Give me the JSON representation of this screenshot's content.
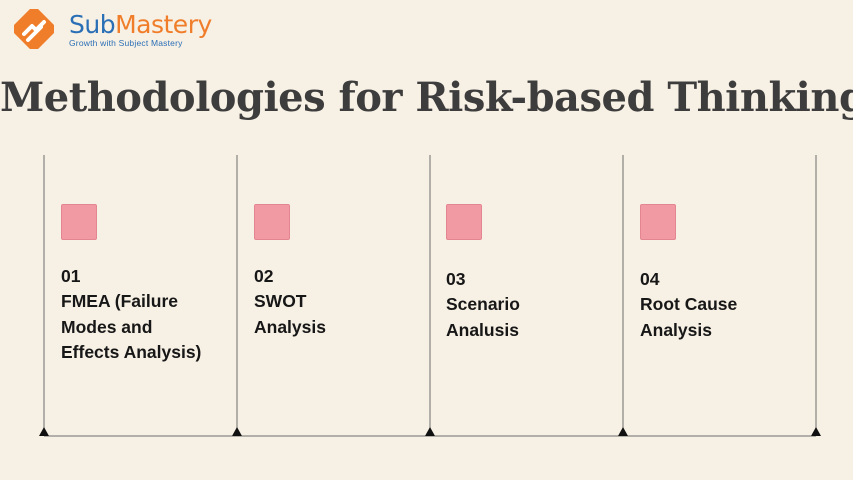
{
  "brand": {
    "name_part1": "Sub",
    "name_part2": "Mastery",
    "tagline": "Growth with Subject Mastery"
  },
  "title": "Methodologies for Risk-based Thinking",
  "colors": {
    "background": "#f7f0e4",
    "marker": "#f29aa3",
    "title": "#3e3d3d",
    "brand_blue": "#2a6fb6",
    "brand_orange": "#f07d2a"
  },
  "steps": [
    {
      "number": "01",
      "label": "FMEA (Failure Modes and Effects Analysis)"
    },
    {
      "number": "02",
      "label": "SWOT Analysis"
    },
    {
      "number": "03",
      "label": "Scenario Analusis"
    },
    {
      "number": "04",
      "label": "Root Cause Analysis"
    }
  ]
}
